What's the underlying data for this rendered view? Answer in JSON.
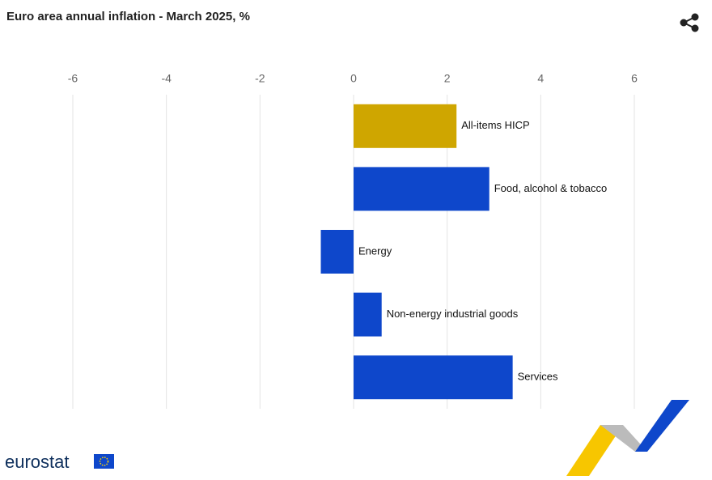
{
  "chart_data": {
    "type": "bar",
    "orientation": "horizontal",
    "title": "Euro area annual inflation - March 2025, %",
    "categories": [
      "All-items HICP",
      "Food, alcohol & tobacco",
      "Energy",
      "Non-energy industrial goods",
      "Services"
    ],
    "values": [
      2.2,
      2.9,
      -0.7,
      0.6,
      3.4
    ],
    "colors": [
      "#cfa600",
      "#0e47cb",
      "#0e47cb",
      "#0e47cb",
      "#0e47cb"
    ],
    "xlim": [
      -6,
      6
    ],
    "xticks": [
      -6,
      -4,
      -2,
      0,
      2,
      4,
      6
    ],
    "grid": true
  },
  "footer": {
    "logo_text": "eurostat"
  }
}
